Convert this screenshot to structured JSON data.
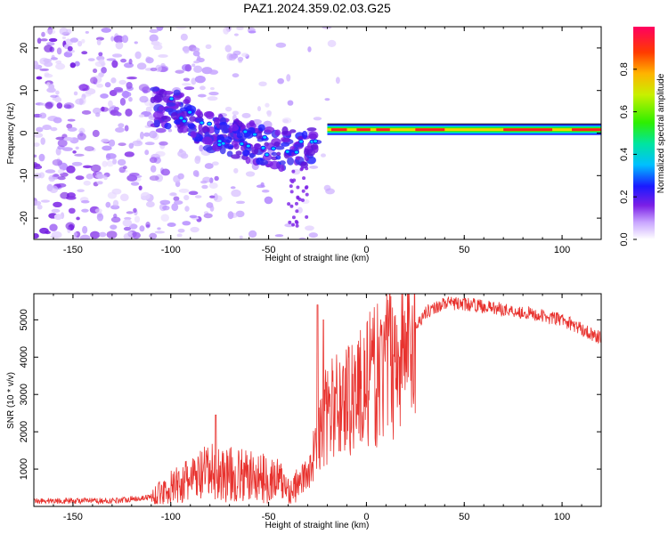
{
  "title": "PAZ1.2024.359.02.03.G25",
  "chart_data": [
    {
      "type": "heatmap",
      "id": "spectrogram",
      "xlabel": "Height of straight line (km)",
      "ylabel": "Frequency (Hz)",
      "xlim": [
        -170,
        120
      ],
      "ylim": [
        -25,
        25
      ],
      "xticks": [
        -150,
        -100,
        -50,
        0,
        50,
        100
      ],
      "yticks": [
        -20,
        -10,
        0,
        10,
        20
      ],
      "colorbar": {
        "label": "Normalized spectral amplitude",
        "range": [
          0,
          1
        ],
        "ticks": [
          0.0,
          0.2,
          0.4,
          0.6,
          0.8
        ]
      },
      "ridge": {
        "description_points": [
          {
            "x": -100,
            "f": 6
          },
          {
            "x": -80,
            "f": 0
          },
          {
            "x": -60,
            "f": -2
          },
          {
            "x": -45,
            "f": -4
          },
          {
            "x": -30,
            "f": -3
          },
          {
            "x": -20,
            "f": -1
          },
          {
            "x": -10,
            "f": 0
          },
          {
            "x": 0,
            "f": 0.5
          },
          {
            "x": 10,
            "f": 1
          },
          {
            "x": 50,
            "f": 0.8
          },
          {
            "x": 100,
            "f": 0.8
          },
          {
            "x": 120,
            "f": 0.8
          }
        ],
        "steady_freq": 0.8,
        "steady_start": -20
      },
      "grid": false
    },
    {
      "type": "line",
      "id": "snr",
      "xlabel": "Height of straight line (km)",
      "ylabel": "SNR (10 * v/v)",
      "xlim": [
        -170,
        120
      ],
      "ylim": [
        0,
        5700
      ],
      "xticks": [
        -150,
        -100,
        -50,
        0,
        50,
        100
      ],
      "yticks": [
        1000,
        2000,
        3000,
        4000,
        5000
      ],
      "color": "#e8322e",
      "envelope": [
        {
          "x": -170,
          "y": 150
        },
        {
          "x": -130,
          "y": 150
        },
        {
          "x": -110,
          "y": 250
        },
        {
          "x": -100,
          "y": 500
        },
        {
          "x": -80,
          "y": 900
        },
        {
          "x": -60,
          "y": 800
        },
        {
          "x": -45,
          "y": 700
        },
        {
          "x": -38,
          "y": 400
        },
        {
          "x": -30,
          "y": 900
        },
        {
          "x": -20,
          "y": 2500
        },
        {
          "x": -10,
          "y": 2900
        },
        {
          "x": 0,
          "y": 3300
        },
        {
          "x": 10,
          "y": 3700
        },
        {
          "x": 20,
          "y": 4400
        },
        {
          "x": 30,
          "y": 5200
        },
        {
          "x": 40,
          "y": 5450
        },
        {
          "x": 55,
          "y": 5400
        },
        {
          "x": 80,
          "y": 5200
        },
        {
          "x": 100,
          "y": 5000
        },
        {
          "x": 120,
          "y": 4500
        }
      ],
      "peaks": [
        {
          "x": -77,
          "y": 2450
        },
        {
          "x": -25,
          "y": 5400
        },
        {
          "x": -22,
          "y": 5000
        },
        {
          "x": 12,
          "y": 5700
        }
      ],
      "grid": false
    }
  ]
}
